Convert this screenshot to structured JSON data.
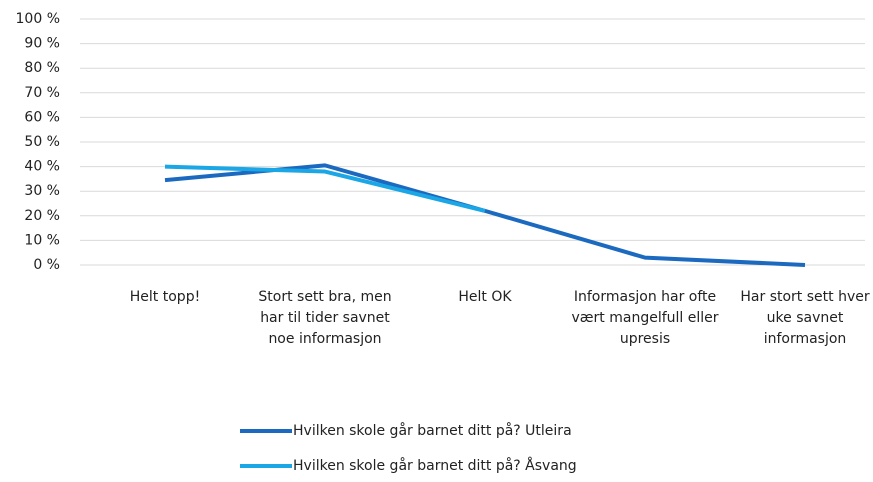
{
  "chart_data": {
    "type": "line",
    "categories": [
      "Helt topp!",
      "Stort sett bra, men har til tider savnet noe informasjon",
      "Helt OK",
      "Informasjon har ofte vært mangelfull eller upresis",
      "Har stort sett hver uke savnet informasjon"
    ],
    "series": [
      {
        "name": "Hvilken skole går barnet ditt på? Utleira",
        "color": "#1b6ac0",
        "values": [
          34.5,
          40.5,
          22,
          3,
          0
        ]
      },
      {
        "name": "Hvilken skole går barnet ditt på? Åsvang",
        "color": "#1ba6e6",
        "values": [
          40,
          38,
          22,
          null,
          null
        ]
      }
    ],
    "ylim": [
      0,
      100
    ],
    "yticks": [
      {
        "value": 0,
        "label": "0 %"
      },
      {
        "value": 10,
        "label": "10 %"
      },
      {
        "value": 20,
        "label": "20 %"
      },
      {
        "value": 30,
        "label": "30 %"
      },
      {
        "value": 40,
        "label": "40 %"
      },
      {
        "value": 50,
        "label": "50 %"
      },
      {
        "value": 60,
        "label": "60 %"
      },
      {
        "value": 70,
        "label": "70 %"
      },
      {
        "value": 80,
        "label": "80 %"
      },
      {
        "value": 90,
        "label": "90 %"
      },
      {
        "value": 100,
        "label": "100 %"
      }
    ],
    "grid": true,
    "legend": "bottom"
  }
}
